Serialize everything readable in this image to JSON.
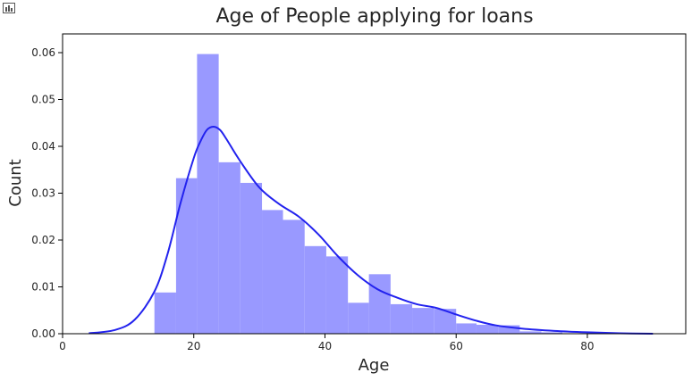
{
  "toolbar": {
    "icon": "bar-chart-icon"
  },
  "chart_data": {
    "type": "bar",
    "title": "Age of People applying for loans",
    "xlabel": "Age",
    "ylabel": "Count",
    "xlim": [
      0,
      95
    ],
    "ylim": [
      0,
      0.064
    ],
    "xticks": [
      0,
      20,
      40,
      60,
      80
    ],
    "yticks": [
      0.0,
      0.01,
      0.02,
      0.03,
      0.04,
      0.05,
      0.06
    ],
    "xtick_labels": [
      "0",
      "20",
      "40",
      "60",
      "80"
    ],
    "ytick_labels": [
      "0.00",
      "0.01",
      "0.02",
      "0.03",
      "0.04",
      "0.05",
      "0.06"
    ],
    "grid": false,
    "bar_color": "#9999ff",
    "line_color": "#2222ee",
    "bins": [
      {
        "x0": 14,
        "x1": 17.3,
        "value": 0.0088
      },
      {
        "x0": 17.3,
        "x1": 20.5,
        "value": 0.0332
      },
      {
        "x0": 20.5,
        "x1": 23.8,
        "value": 0.0597
      },
      {
        "x0": 23.8,
        "x1": 27.1,
        "value": 0.0366
      },
      {
        "x0": 27.1,
        "x1": 30.4,
        "value": 0.0322
      },
      {
        "x0": 30.4,
        "x1": 33.6,
        "value": 0.0264
      },
      {
        "x0": 33.6,
        "x1": 36.9,
        "value": 0.0243
      },
      {
        "x0": 36.9,
        "x1": 40.2,
        "value": 0.0187
      },
      {
        "x0": 40.2,
        "x1": 43.5,
        "value": 0.0165
      },
      {
        "x0": 43.5,
        "x1": 46.7,
        "value": 0.0066
      },
      {
        "x0": 46.7,
        "x1": 50.0,
        "value": 0.0127
      },
      {
        "x0": 50.0,
        "x1": 53.3,
        "value": 0.0063
      },
      {
        "x0": 53.3,
        "x1": 56.6,
        "value": 0.0055
      },
      {
        "x0": 56.6,
        "x1": 60.0,
        "value": 0.0053
      },
      {
        "x0": 60.0,
        "x1": 63.1,
        "value": 0.0022
      },
      {
        "x0": 63.1,
        "x1": 66.4,
        "value": 0.0019
      },
      {
        "x0": 66.4,
        "x1": 69.7,
        "value": 0.0018
      },
      {
        "x0": 69.7,
        "x1": 73.0,
        "value": 0.0005
      },
      {
        "x0": 73.0,
        "x1": 76.2,
        "value": 0.0003
      }
    ],
    "kde": {
      "x": [
        4,
        8,
        11,
        14,
        16,
        18,
        20,
        21,
        22,
        23,
        24,
        25,
        27,
        30,
        33,
        36,
        39,
        42,
        45,
        48,
        51,
        54,
        57,
        60,
        63,
        66,
        70,
        75,
        80,
        85,
        90
      ],
      "y": [
        0.0001,
        0.0008,
        0.003,
        0.009,
        0.017,
        0.028,
        0.0375,
        0.041,
        0.0435,
        0.0442,
        0.0435,
        0.0415,
        0.037,
        0.0312,
        0.0277,
        0.025,
        0.0212,
        0.0165,
        0.0125,
        0.0095,
        0.0077,
        0.0063,
        0.0055,
        0.0041,
        0.0028,
        0.0018,
        0.0011,
        0.0006,
        0.0003,
        0.0001,
        0.0
      ]
    }
  }
}
